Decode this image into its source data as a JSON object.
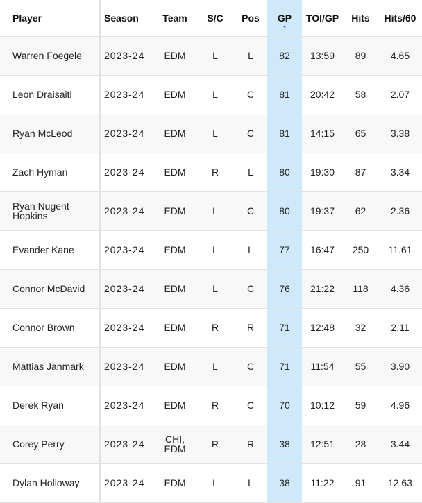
{
  "columns": [
    "Player",
    "Season",
    "Team",
    "S/C",
    "Pos",
    "GP",
    "TOI/GP",
    "Hits",
    "Hits/60"
  ],
  "sort": {
    "column": "GP",
    "direction": "descending",
    "icon": "sort-down-icon",
    "color": "#3a7bd5"
  },
  "highlight_color": "#cfe9fb",
  "rows": [
    [
      "Warren Foegele",
      "2023-24",
      "EDM",
      "L",
      "L",
      "82",
      "13:59",
      "89",
      "4.65"
    ],
    [
      "Leon Draisaitl",
      "2023-24",
      "EDM",
      "L",
      "C",
      "81",
      "20:42",
      "58",
      "2.07"
    ],
    [
      "Ryan McLeod",
      "2023-24",
      "EDM",
      "L",
      "C",
      "81",
      "14:15",
      "65",
      "3.38"
    ],
    [
      "Zach Hyman",
      "2023-24",
      "EDM",
      "R",
      "L",
      "80",
      "19:30",
      "87",
      "3.34"
    ],
    [
      "Ryan Nugent-Hopkins",
      "2023-24",
      "EDM",
      "L",
      "C",
      "80",
      "19:37",
      "62",
      "2.36"
    ],
    [
      "Evander Kane",
      "2023-24",
      "EDM",
      "L",
      "L",
      "77",
      "16:47",
      "250",
      "11.61"
    ],
    [
      "Connor McDavid",
      "2023-24",
      "EDM",
      "L",
      "C",
      "76",
      "21:22",
      "118",
      "4.36"
    ],
    [
      "Connor Brown",
      "2023-24",
      "EDM",
      "R",
      "R",
      "71",
      "12:48",
      "32",
      "2.11"
    ],
    [
      "Mattias Janmark",
      "2023-24",
      "EDM",
      "L",
      "C",
      "71",
      "11:54",
      "55",
      "3.90"
    ],
    [
      "Derek Ryan",
      "2023-24",
      "EDM",
      "R",
      "C",
      "70",
      "10:12",
      "59",
      "4.96"
    ],
    [
      "Corey Perry",
      "2023-24",
      "CHI, EDM",
      "R",
      "R",
      "38",
      "12:51",
      "28",
      "3.44"
    ],
    [
      "Dylan Holloway",
      "2023-24",
      "EDM",
      "L",
      "L",
      "38",
      "11:22",
      "91",
      "12.63"
    ]
  ]
}
